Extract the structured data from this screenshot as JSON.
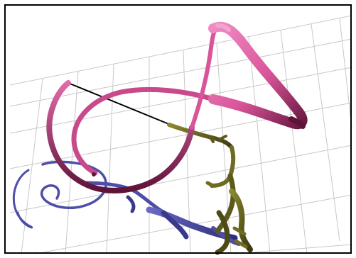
{
  "viewer": {
    "background_color": "#ffffff",
    "border_color": "#000000",
    "grid_color": "#c8c8c8",
    "molecule": {
      "chains": [
        {
          "name": "ribbon-pink",
          "color": "#d9559a",
          "shade": "#7a1f4e"
        },
        {
          "name": "ribbon-blue",
          "color": "#4e4ea8",
          "shade": "#26266a"
        },
        {
          "name": "backbone-olive",
          "color": "#6f6b22",
          "shade": "#3e3b10"
        }
      ],
      "bond_color": "#000000"
    }
  }
}
